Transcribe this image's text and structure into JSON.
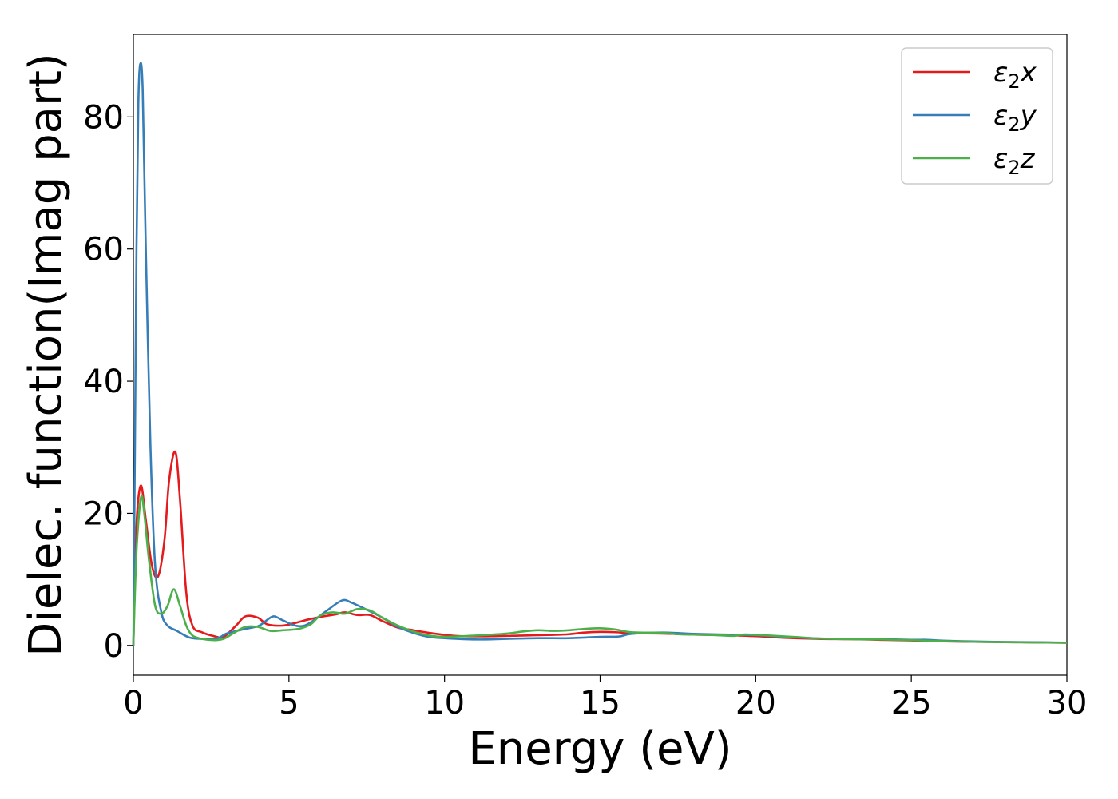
{
  "chart_data": {
    "type": "line",
    "title": "",
    "xlabel": "Energy (eV)",
    "ylabel": "Dielec. function(Imag part)",
    "xlim": [
      0,
      30
    ],
    "ylim": [
      -4.5,
      92.5
    ],
    "xticks": [
      0,
      5,
      10,
      15,
      20,
      25,
      30
    ],
    "xtick_labels": [
      "0",
      "5",
      "10",
      "15",
      "20",
      "25",
      "30"
    ],
    "yticks": [
      0,
      20,
      40,
      60,
      80
    ],
    "ytick_labels": [
      "0",
      "20",
      "40",
      "60",
      "80"
    ],
    "grid": false,
    "legend_position": "top-right",
    "series": [
      {
        "name": "ε₂x",
        "legend_main": "ε",
        "legend_sub": "2",
        "legend_var": "x",
        "color": "#e41a1c",
        "points": [
          [
            0,
            0
          ],
          [
            0.05,
            10
          ],
          [
            0.12,
            20
          ],
          [
            0.25,
            24.2
          ],
          [
            0.4,
            19
          ],
          [
            0.6,
            12
          ],
          [
            0.8,
            10.5
          ],
          [
            1.0,
            16
          ],
          [
            1.15,
            25
          ],
          [
            1.35,
            29.3
          ],
          [
            1.5,
            22
          ],
          [
            1.7,
            8
          ],
          [
            1.9,
            3
          ],
          [
            2.2,
            2
          ],
          [
            2.6,
            1.4
          ],
          [
            2.9,
            1.3
          ],
          [
            3.3,
            3
          ],
          [
            3.6,
            4.4
          ],
          [
            4.0,
            4.2
          ],
          [
            4.3,
            3.2
          ],
          [
            4.8,
            3
          ],
          [
            5.2,
            3.4
          ],
          [
            5.6,
            3.9
          ],
          [
            6.0,
            4.3
          ],
          [
            6.5,
            4.7
          ],
          [
            6.8,
            5
          ],
          [
            7.2,
            4.6
          ],
          [
            7.6,
            4.6
          ],
          [
            8.0,
            3.7
          ],
          [
            8.5,
            2.7
          ],
          [
            9.0,
            2.3
          ],
          [
            9.5,
            1.9
          ],
          [
            10.0,
            1.6
          ],
          [
            10.5,
            1.4
          ],
          [
            11.5,
            1.4
          ],
          [
            12.5,
            1.5
          ],
          [
            13.5,
            1.6
          ],
          [
            14.0,
            1.7
          ],
          [
            14.5,
            1.95
          ],
          [
            15.0,
            2.05
          ],
          [
            15.5,
            2.0
          ],
          [
            16.0,
            1.85
          ],
          [
            17.0,
            1.8
          ],
          [
            18.0,
            1.65
          ],
          [
            19.0,
            1.55
          ],
          [
            20.0,
            1.4
          ],
          [
            21.0,
            1.15
          ],
          [
            22.0,
            1.0
          ],
          [
            23.0,
            0.95
          ],
          [
            24.0,
            0.85
          ],
          [
            25.0,
            0.75
          ],
          [
            26.0,
            0.62
          ],
          [
            27.0,
            0.55
          ],
          [
            28.0,
            0.5
          ],
          [
            29.0,
            0.45
          ],
          [
            30.0,
            0.4
          ]
        ]
      },
      {
        "name": "ε₂y",
        "legend_main": "ε",
        "legend_sub": "2",
        "legend_var": "y",
        "color": "#377eb8",
        "points": [
          [
            0,
            0
          ],
          [
            0.05,
            30
          ],
          [
            0.1,
            60
          ],
          [
            0.16,
            82
          ],
          [
            0.22,
            88
          ],
          [
            0.3,
            84
          ],
          [
            0.4,
            60
          ],
          [
            0.55,
            30
          ],
          [
            0.7,
            12
          ],
          [
            0.9,
            5
          ],
          [
            1.1,
            3
          ],
          [
            1.4,
            2.2
          ],
          [
            1.8,
            1.2
          ],
          [
            2.2,
            1.0
          ],
          [
            2.7,
            1.1
          ],
          [
            3.0,
            1.8
          ],
          [
            3.5,
            2.4
          ],
          [
            4.0,
            2.9
          ],
          [
            4.2,
            3.5
          ],
          [
            4.5,
            4.4
          ],
          [
            4.8,
            3.8
          ],
          [
            5.2,
            3.0
          ],
          [
            5.5,
            3.0
          ],
          [
            5.8,
            3.8
          ],
          [
            6.2,
            5.2
          ],
          [
            6.7,
            6.8
          ],
          [
            7.0,
            6.5
          ],
          [
            7.5,
            5.4
          ],
          [
            8.0,
            4.2
          ],
          [
            8.5,
            2.8
          ],
          [
            9.0,
            1.9
          ],
          [
            9.5,
            1.3
          ],
          [
            10.0,
            1.1
          ],
          [
            11.0,
            0.9
          ],
          [
            12.0,
            1.0
          ],
          [
            13.0,
            1.1
          ],
          [
            14.0,
            1.1
          ],
          [
            15.0,
            1.3
          ],
          [
            15.6,
            1.35
          ],
          [
            16.0,
            1.75
          ],
          [
            17.0,
            1.95
          ],
          [
            18.0,
            1.75
          ],
          [
            19.0,
            1.65
          ],
          [
            20.0,
            1.55
          ],
          [
            21.0,
            1.3
          ],
          [
            22.0,
            1.05
          ],
          [
            23.0,
            1.0
          ],
          [
            24.0,
            0.95
          ],
          [
            25.0,
            0.85
          ],
          [
            25.5,
            0.85
          ],
          [
            26.0,
            0.72
          ],
          [
            27.0,
            0.6
          ],
          [
            28.0,
            0.52
          ],
          [
            29.0,
            0.48
          ],
          [
            30.0,
            0.42
          ]
        ]
      },
      {
        "name": "ε₂z",
        "legend_main": "ε",
        "legend_sub": "2",
        "legend_var": "z",
        "color": "#4daf4a",
        "points": [
          [
            0,
            0
          ],
          [
            0.05,
            8
          ],
          [
            0.12,
            16
          ],
          [
            0.25,
            22.5
          ],
          [
            0.35,
            20
          ],
          [
            0.5,
            13
          ],
          [
            0.7,
            6
          ],
          [
            0.9,
            4.8
          ],
          [
            1.1,
            6
          ],
          [
            1.3,
            8.5
          ],
          [
            1.5,
            6
          ],
          [
            1.7,
            3
          ],
          [
            1.9,
            1.5
          ],
          [
            2.2,
            1.0
          ],
          [
            2.6,
            0.8
          ],
          [
            2.9,
            1.0
          ],
          [
            3.2,
            1.8
          ],
          [
            3.6,
            2.8
          ],
          [
            4.0,
            2.8
          ],
          [
            4.4,
            2.2
          ],
          [
            4.8,
            2.3
          ],
          [
            5.3,
            2.5
          ],
          [
            5.7,
            3.2
          ],
          [
            6.0,
            4.5
          ],
          [
            6.4,
            5.0
          ],
          [
            6.8,
            4.8
          ],
          [
            7.2,
            5.5
          ],
          [
            7.6,
            5.3
          ],
          [
            8.0,
            4.2
          ],
          [
            8.5,
            3.0
          ],
          [
            9.0,
            2.1
          ],
          [
            9.5,
            1.5
          ],
          [
            10.0,
            1.3
          ],
          [
            11.0,
            1.5
          ],
          [
            12.0,
            1.8
          ],
          [
            12.5,
            2.1
          ],
          [
            13.0,
            2.3
          ],
          [
            13.5,
            2.2
          ],
          [
            14.0,
            2.3
          ],
          [
            14.5,
            2.5
          ],
          [
            15.0,
            2.6
          ],
          [
            15.5,
            2.4
          ],
          [
            16.0,
            2.0
          ],
          [
            17.0,
            1.9
          ],
          [
            17.5,
            1.7
          ],
          [
            18.0,
            1.65
          ],
          [
            18.5,
            1.6
          ],
          [
            19.0,
            1.5
          ],
          [
            19.3,
            1.45
          ],
          [
            19.6,
            1.65
          ],
          [
            20.0,
            1.6
          ],
          [
            21.0,
            1.35
          ],
          [
            21.5,
            1.2
          ],
          [
            22.0,
            1.05
          ],
          [
            23.0,
            0.95
          ],
          [
            24.0,
            0.9
          ],
          [
            25.0,
            0.8
          ],
          [
            26.0,
            0.65
          ],
          [
            27.0,
            0.55
          ],
          [
            28.0,
            0.5
          ],
          [
            29.0,
            0.45
          ],
          [
            30.0,
            0.4
          ]
        ]
      }
    ]
  }
}
